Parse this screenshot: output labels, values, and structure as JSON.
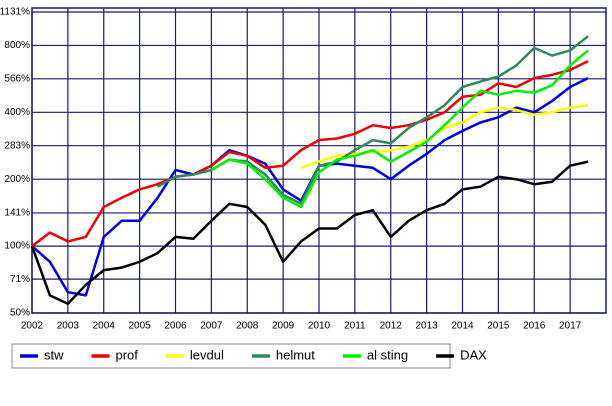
{
  "chart_data": {
    "type": "line",
    "log_y": true,
    "grid": true,
    "legend": "bottom",
    "x": [
      2002,
      2002.5,
      2003,
      2003.5,
      2004,
      2004.5,
      2005,
      2005.5,
      2006,
      2006.5,
      2007,
      2007.5,
      2008,
      2008.5,
      2009,
      2009.5,
      2010,
      2010.5,
      2011,
      2011.5,
      2012,
      2012.5,
      2013,
      2013.5,
      2014,
      2014.5,
      2015,
      2015.5,
      2016,
      2016.5,
      2017,
      2017.5
    ],
    "xlim": [
      2002,
      2018
    ],
    "xticks": [
      2002,
      2003,
      2004,
      2005,
      2006,
      2007,
      2008,
      2009,
      2010,
      2011,
      2012,
      2013,
      2014,
      2015,
      2016,
      2017
    ],
    "ylim": [
      50,
      1131
    ],
    "yticks": [
      {
        "value": 50,
        "label": "50%"
      },
      {
        "value": 71,
        "label": "71%"
      },
      {
        "value": 100,
        "label": "100%"
      },
      {
        "value": 141,
        "label": "141%"
      },
      {
        "value": 200,
        "label": "200%"
      },
      {
        "value": 283,
        "label": "283%"
      },
      {
        "value": 400,
        "label": "400%"
      },
      {
        "value": 566,
        "label": "566%"
      },
      {
        "value": 800,
        "label": "800%"
      },
      {
        "value": 1131,
        "label": "1131%"
      }
    ],
    "series": [
      {
        "name": "stw",
        "color": "#0000dd",
        "values": [
          100,
          85,
          62,
          60,
          110,
          130,
          130,
          165,
          220,
          210,
          230,
          270,
          255,
          235,
          180,
          160,
          230,
          235,
          230,
          225,
          200,
          230,
          260,
          300,
          330,
          360,
          380,
          420,
          400,
          450,
          520,
          570
        ]
      },
      {
        "name": "prof",
        "color": "#ee0000",
        "values": [
          100,
          115,
          105,
          110,
          150,
          165,
          180,
          190,
          205,
          210,
          230,
          265,
          255,
          225,
          230,
          270,
          300,
          305,
          320,
          350,
          340,
          350,
          370,
          400,
          470,
          480,
          540,
          520,
          570,
          590,
          620,
          680
        ]
      },
      {
        "name": "levdul",
        "color": "#ffff00",
        "values": [
          null,
          null,
          null,
          null,
          null,
          null,
          null,
          null,
          null,
          null,
          null,
          null,
          null,
          null,
          null,
          225,
          240,
          255,
          260,
          265,
          270,
          280,
          300,
          340,
          360,
          400,
          420,
          410,
          390,
          400,
          420,
          430
        ]
      },
      {
        "name": "helmut",
        "color": "#2e8b57",
        "values": [
          null,
          null,
          null,
          null,
          null,
          null,
          null,
          185,
          205,
          210,
          220,
          245,
          240,
          210,
          170,
          155,
          230,
          240,
          270,
          300,
          290,
          340,
          380,
          430,
          520,
          550,
          580,
          650,
          780,
          720,
          760,
          880
        ]
      },
      {
        "name": "al sting",
        "color": "#00ee00",
        "values": [
          null,
          null,
          null,
          null,
          null,
          null,
          null,
          null,
          null,
          null,
          220,
          245,
          235,
          200,
          165,
          150,
          215,
          245,
          255,
          270,
          240,
          265,
          295,
          350,
          420,
          500,
          480,
          500,
          490,
          530,
          650,
          760
        ]
      },
      {
        "name": "DAX",
        "color": "#000000",
        "values": [
          100,
          60,
          55,
          67,
          78,
          80,
          85,
          93,
          110,
          108,
          130,
          155,
          150,
          125,
          85,
          105,
          120,
          120,
          138,
          145,
          110,
          130,
          145,
          155,
          180,
          185,
          205,
          200,
          190,
          195,
          230,
          240
        ]
      }
    ]
  }
}
